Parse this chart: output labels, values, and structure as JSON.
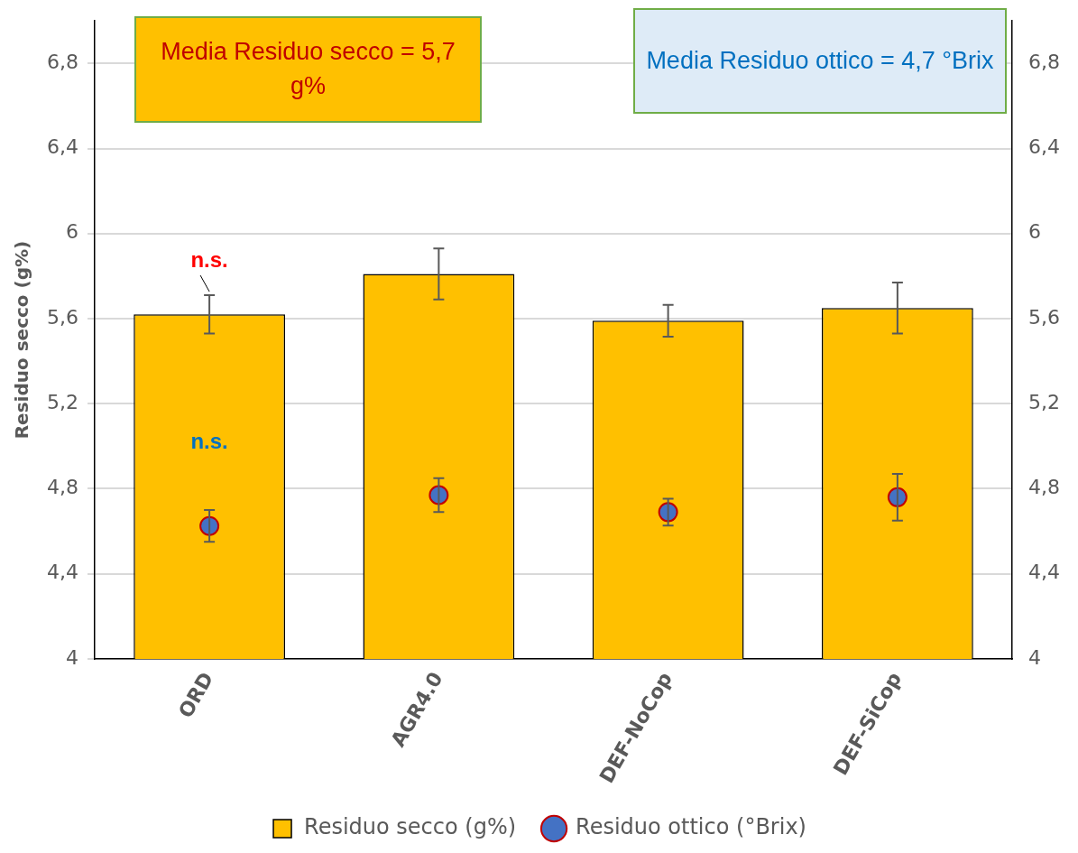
{
  "chart_data": {
    "type": "bar",
    "ylabel": "Residuo secco (g%)",
    "categories": [
      "ORD",
      "AGR4.0",
      "DEF-NoCop",
      "DEF-SiCop"
    ],
    "series": [
      {
        "name": "Residuo secco (g%)",
        "color": "#ffc000",
        "values": [
          5.62,
          5.81,
          5.59,
          5.65
        ],
        "errors": [
          0.09,
          0.12,
          0.075,
          0.12
        ]
      },
      {
        "name": "Residuo ottico (°Brix)",
        "type": "scatter",
        "axis": "y2",
        "color": "#4472c4",
        "x": [
          "ORD",
          "AGR4.0",
          "DEF-NoCop",
          "DEF-SiCop"
        ],
        "values": [
          4.625,
          4.77,
          4.69,
          4.76
        ],
        "errors": [
          0.075,
          0.08,
          0.063,
          0.11
        ]
      }
    ],
    "ylim": [
      4,
      7
    ],
    "yticks": [
      4,
      {
        "value": 4.4,
        "label": "4,4"
      },
      {
        "value": 4.8,
        "label": "4,8"
      },
      {
        "value": 5.2,
        "label": "5,2"
      },
      {
        "value": 5.6,
        "label": "5,6"
      },
      6,
      {
        "value": 6.4,
        "label": "6,4"
      },
      {
        "value": 6.8,
        "label": "6,8"
      }
    ],
    "y2lim": [
      4,
      7
    ],
    "y2ticks": [
      4,
      {
        "value": 4.4,
        "label": "4,4"
      },
      {
        "value": 4.8,
        "label": "4,8"
      },
      {
        "value": 5.2,
        "label": "5,2"
      },
      {
        "value": 5.6,
        "label": "5,6"
      },
      6,
      {
        "value": 6.4,
        "label": "6,4"
      },
      {
        "value": 6.8,
        "label": "6,8"
      }
    ],
    "grid": "y",
    "legend": "bottom",
    "marker": "circle",
    "annotations": [
      "Media Residuo secco = 5,7 g%",
      "Media Residuo ottico = 4,7 °Brix",
      "n.s.",
      "n.s."
    ]
  }
}
